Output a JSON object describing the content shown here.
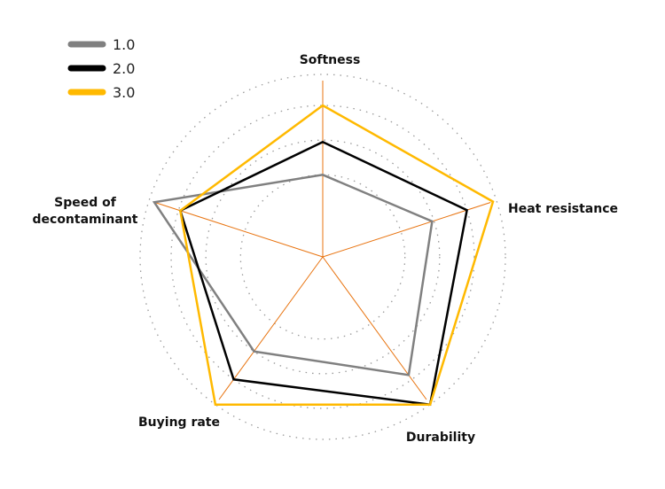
{
  "chart_data": {
    "type": "radar",
    "title": "",
    "axes": [
      "Softness",
      "Heat resistance",
      "Durability",
      "Buying rate",
      "Speed of decontaminant"
    ],
    "axis_label_lines": [
      [
        "Softness"
      ],
      [
        "Heat resistance"
      ],
      [
        "Durability"
      ],
      [
        "Buying rate"
      ],
      [
        "Speed of",
        "decontaminant"
      ]
    ],
    "range": [
      0,
      5
    ],
    "grid": true,
    "grid_style": "dotted circles",
    "grid_rings": [
      2.25,
      3.2,
      4.15,
      5
    ],
    "legend_position": "top-left",
    "series": [
      {
        "name": "1.0",
        "color": "#808080",
        "values": [
          2.25,
          3.15,
          4.0,
          3.2,
          4.85
        ]
      },
      {
        "name": "2.0",
        "color": "#000000",
        "values": [
          3.15,
          4.15,
          5.0,
          4.15,
          4.1
        ]
      },
      {
        "name": "3.0",
        "color": "#FFB900",
        "values": [
          4.15,
          4.9,
          5.0,
          5.0,
          4.1
        ]
      }
    ],
    "axis_color": "#E8730F",
    "grid_color": "#9A9A9A"
  }
}
